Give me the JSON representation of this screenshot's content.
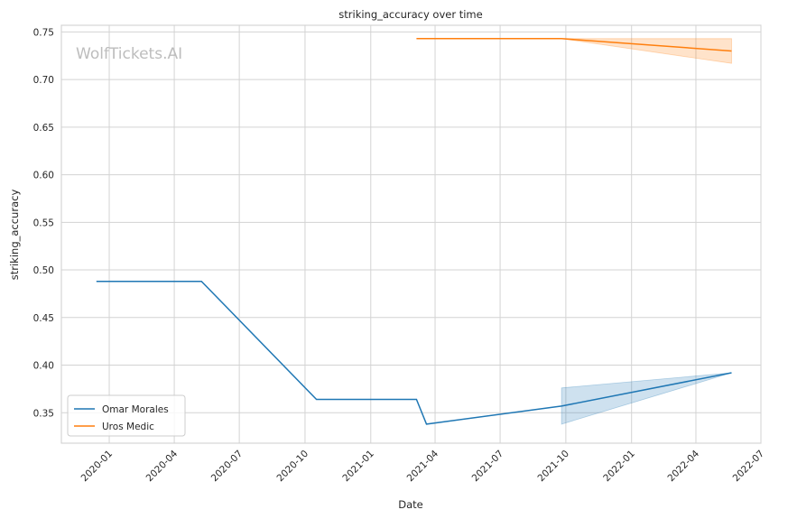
{
  "chart_data": {
    "type": "line",
    "title": "striking_accuracy over time",
    "xlabel": "Date",
    "ylabel": "striking_accuracy",
    "watermark": "WolfTickets.AI",
    "xlim": [
      "2019-10-26",
      "2022-07-01"
    ],
    "ylim": [
      0.318,
      0.757
    ],
    "x_ticks": [
      "2020-01",
      "2020-04",
      "2020-07",
      "2020-10",
      "2021-01",
      "2021-04",
      "2021-07",
      "2021-10",
      "2022-01",
      "2022-04",
      "2022-07"
    ],
    "y_ticks": [
      "0.35",
      "0.40",
      "0.45",
      "0.50",
      "0.55",
      "0.60",
      "0.65",
      "0.70",
      "0.75"
    ],
    "grid": true,
    "legend_position": "lower-left",
    "series": [
      {
        "name": "Omar Morales",
        "color": "#1f77b4",
        "x": [
          "2019-12-14",
          "2020-05-09",
          "2020-10-17",
          "2021-03-06",
          "2021-03-20",
          "2021-09-25",
          "2022-05-21"
        ],
        "y": [
          0.488,
          0.488,
          0.364,
          0.364,
          0.338,
          0.357,
          0.392
        ],
        "band": {
          "x": [
            "2021-09-25",
            "2022-05-21"
          ],
          "lower": [
            0.338,
            0.392
          ],
          "upper": [
            0.376,
            0.392
          ]
        }
      },
      {
        "name": "Uros Medic",
        "color": "#ff7f0e",
        "x": [
          "2021-03-06",
          "2021-09-25",
          "2022-05-21"
        ],
        "y": [
          0.743,
          0.743,
          0.73
        ],
        "band": {
          "x": [
            "2021-09-25",
            "2022-05-21"
          ],
          "lower": [
            0.743,
            0.717
          ],
          "upper": [
            0.743,
            0.743
          ]
        }
      }
    ]
  }
}
